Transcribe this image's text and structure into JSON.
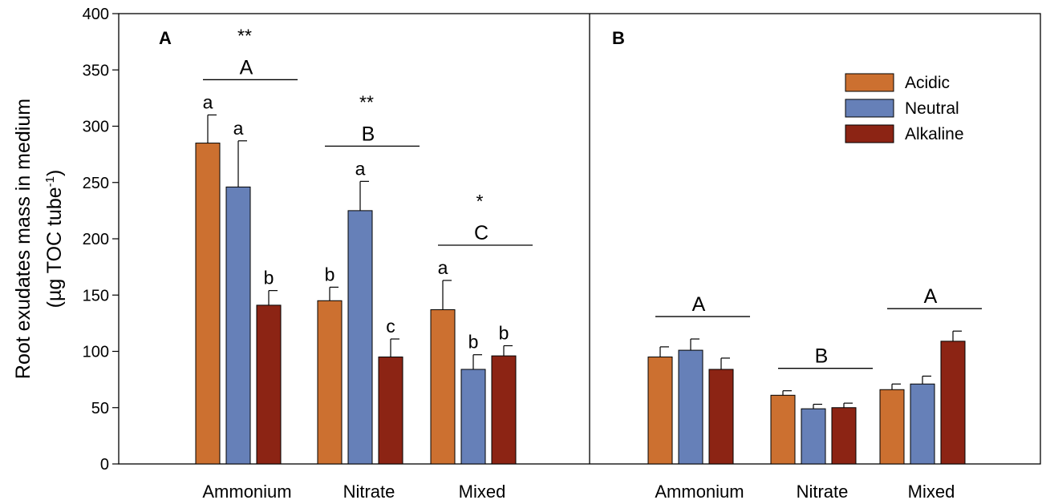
{
  "chart_data": {
    "type": "bar",
    "ylabel": "Root exudates mass in medium",
    "ylabel_line2": "(µg TOC tube",
    "ylabel_sup": "-1",
    "ylabel_close": ")",
    "ylim": [
      0,
      400
    ],
    "yticks": [
      0,
      50,
      100,
      150,
      200,
      250,
      300,
      350,
      400
    ],
    "categories": [
      "Ammonium",
      "Nitrate",
      "Mixed"
    ],
    "legend": {
      "position": "top-right of panel B",
      "entries": [
        {
          "name": "Acidic",
          "color": "#cc7030"
        },
        {
          "name": "Neutral",
          "color": "#6680b8"
        },
        {
          "name": "Alkaline",
          "color": "#8c2414"
        }
      ]
    },
    "panels": [
      {
        "label": "A",
        "series": [
          {
            "name": "Acidic",
            "values": [
              285,
              145,
              137
            ],
            "errors": [
              25,
              12,
              26
            ]
          },
          {
            "name": "Neutral",
            "values": [
              246,
              225,
              84
            ],
            "errors": [
              41,
              26,
              13
            ]
          },
          {
            "name": "Alkaline",
            "values": [
              141,
              95,
              96
            ],
            "errors": [
              13,
              16,
              9
            ]
          }
        ],
        "bar_letters": [
          [
            "a",
            "a",
            "b"
          ],
          [
            "b",
            "a",
            "c"
          ],
          [
            "a",
            "b",
            "b"
          ]
        ],
        "group_letters": [
          "A",
          "B",
          "C"
        ],
        "significance": [
          "**",
          "**",
          "*"
        ]
      },
      {
        "label": "B",
        "series": [
          {
            "name": "Acidic",
            "values": [
              95,
              61,
              66
            ],
            "errors": [
              9,
              4,
              5
            ]
          },
          {
            "name": "Neutral",
            "values": [
              101,
              49,
              71
            ],
            "errors": [
              10,
              4,
              7
            ]
          },
          {
            "name": "Alkaline",
            "values": [
              84,
              50,
              109
            ],
            "errors": [
              10,
              4,
              9
            ]
          }
        ],
        "bar_letters": [],
        "group_letters": [
          "A",
          "B",
          "A"
        ],
        "significance": []
      }
    ]
  }
}
